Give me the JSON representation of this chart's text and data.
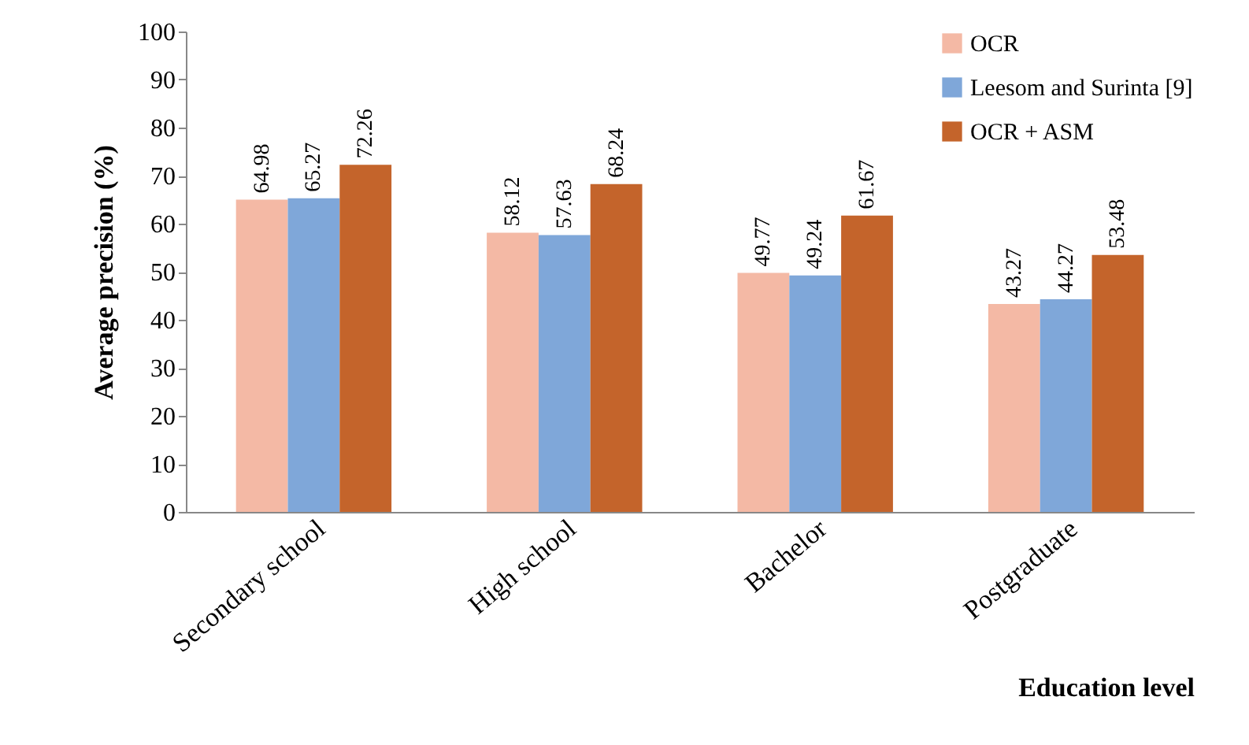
{
  "chart_data": {
    "type": "bar",
    "xlabel": "Education level",
    "ylabel": "Average precision (%)",
    "categories": [
      "Secondary school",
      "High school",
      "Bachelor",
      "Postgraduate"
    ],
    "series": [
      {
        "name": "OCR",
        "color": "#f4b9a5",
        "values": [
          64.98,
          58.12,
          49.77,
          43.27
        ]
      },
      {
        "name": "Leesom and Surinta [9]",
        "color": "#7fa7d9",
        "values": [
          65.27,
          57.63,
          49.24,
          44.27
        ]
      },
      {
        "name": "OCR + ASM",
        "color": "#c4642b",
        "values": [
          72.26,
          68.24,
          61.67,
          53.48
        ]
      }
    ],
    "ylim": [
      0,
      100
    ],
    "yticks": [
      0,
      10,
      20,
      30,
      40,
      50,
      60,
      70,
      80,
      90,
      100
    ],
    "grid": false,
    "legend": "top right",
    "data_labels": true
  }
}
